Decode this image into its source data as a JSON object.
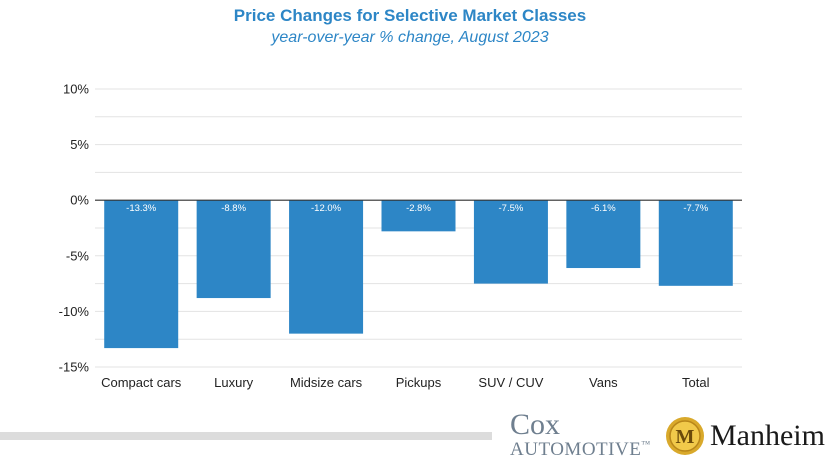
{
  "chart_data": {
    "type": "bar",
    "title": "Price Changes for Selective Market Classes",
    "subtitle": "year-over-year % change, August 2023",
    "categories": [
      "Compact cars",
      "Luxury",
      "Midsize cars",
      "Pickups",
      "SUV / CUV",
      "Vans",
      "Total"
    ],
    "values": [
      -13.3,
      -8.8,
      -12.0,
      -2.8,
      -7.5,
      -6.1,
      -7.7
    ],
    "data_labels": [
      "-13.3%",
      "-8.8%",
      "-12.0%",
      "-2.8%",
      "-7.5%",
      "-6.1%",
      "-7.7%"
    ],
    "yticks": [
      10,
      5,
      0,
      -5,
      -10,
      -15
    ],
    "ytick_labels": [
      "10%",
      "5%",
      "0%",
      "-5%",
      "-10%",
      "-15%"
    ],
    "ylim": [
      -15,
      10
    ],
    "grid": true,
    "bar_color": "#2d86c6"
  },
  "logos": {
    "cox_line1": "Cox",
    "cox_line2": "AUTOMOTIVE",
    "cox_tm": "™",
    "manheim": "Manheim",
    "manheim_seal_letter": "M"
  }
}
